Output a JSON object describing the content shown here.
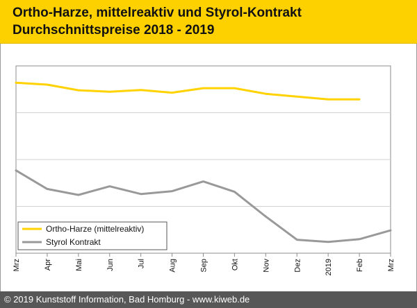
{
  "header": {
    "title_line1": "Ortho-Harze, mittelreaktiv und Styrol-Kontrakt",
    "title_line2": "Durchschnittspreise 2018 - 2019",
    "background_color": "#fdd000"
  },
  "footer": {
    "text": "© 2019 Kunststoff Information, Bad Homburg - www.kiweb.de",
    "background_color": "#575757"
  },
  "chart_data": {
    "type": "line",
    "title": "Ortho-Harze, mittelreaktiv und Styrol-Kontrakt Durchschnittspreise 2018 - 2019",
    "xlabel": "",
    "ylabel": "",
    "y_tick_labels": "none",
    "grid": "horizontal",
    "legend_position": "bottom-left",
    "categories": [
      "Mrz",
      "Apr",
      "Mai",
      "Jun",
      "Jul",
      "Aug",
      "Sep",
      "Okt",
      "Nov",
      "Dez",
      "2019",
      "Feb",
      "Mrz"
    ],
    "ylim": [
      0,
      100
    ],
    "series": [
      {
        "name": "Ortho-Harze (mittelreaktiv)",
        "color": "#ffd200",
        "values": [
          91,
          90,
          87,
          86.2,
          87.1,
          85.7,
          88.1,
          88.1,
          85.1,
          83.6,
          82.1,
          82.1,
          null
        ]
      },
      {
        "name": "Styrol Kontrakt",
        "color": "#999999",
        "values": [
          44.2,
          34.3,
          31.1,
          35.7,
          31.6,
          33.1,
          38.3,
          32.8,
          19.6,
          7.2,
          6.0,
          7.5,
          12.2
        ]
      }
    ]
  }
}
